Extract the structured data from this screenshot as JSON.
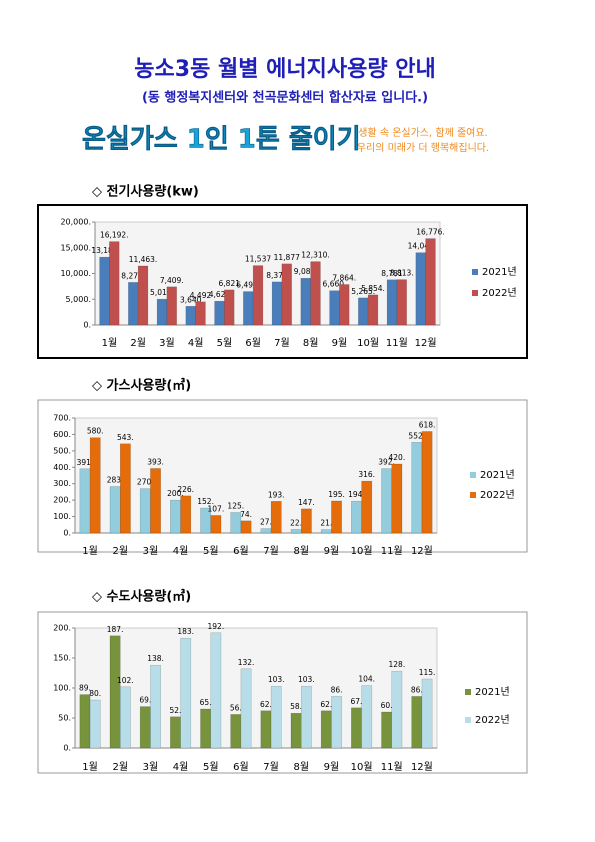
{
  "header": {
    "title": "농소3동 월별 에너지사용량 안내",
    "subtitle": "(동 행정복지센터와 천곡문화센터 합산자료 입니다.)"
  },
  "banner": {
    "slogan": "온실가스 1인 1톤 줄이기",
    "tagline": [
      "생활 속 온실가스, 함께 줄여요.",
      "우리의 미래가 더 행복해집니다."
    ]
  },
  "chart_data": [
    {
      "type": "bar",
      "title": "◇ 전기사용량(kw)",
      "categories": [
        "1월",
        "2월",
        "3월",
        "4월",
        "5월",
        "6월",
        "7월",
        "8월",
        "9월",
        "10월",
        "11월",
        "12월"
      ],
      "series": [
        {
          "name": "2021년",
          "color": "#4a7ebb",
          "values": [
            13180,
            8279,
            5017,
            3640,
            4627,
            6494,
            8374,
            9080,
            6660,
            5265,
            8781,
            14044
          ],
          "value_labels": [
            "13,180",
            "8,279.",
            "5,017.",
            "3,640",
            "4,627",
            "6,494.",
            "8,374",
            "9,080.",
            "6,660.",
            "5,265.",
            "8,781",
            "14,044"
          ]
        },
        {
          "name": "2022년",
          "color": "#c0504d",
          "values": [
            16192,
            11463,
            7409,
            4492,
            6821,
            11537,
            11877,
            12310,
            7864,
            5854,
            8813,
            16776
          ],
          "value_labels": [
            "16,192.",
            "11,463.",
            "7,409.",
            "4,492",
            "6,821",
            "11,537",
            "11,877",
            "12,310.",
            "7,864.",
            "5,854.",
            "8,813.",
            "16,776."
          ]
        }
      ],
      "ylim": [
        0,
        20000
      ],
      "yticks": [
        {
          "value": 0,
          "label": "0."
        },
        {
          "value": 5000,
          "label": "5,000."
        },
        {
          "value": 10000,
          "label": "10,000."
        },
        {
          "value": 15000,
          "label": "15,000."
        },
        {
          "value": 20000,
          "label": "20,000."
        }
      ]
    },
    {
      "type": "bar",
      "title": "◇ 가스사용량(㎥)",
      "categories": [
        "1월",
        "2월",
        "3월",
        "4월",
        "5월",
        "6월",
        "7월",
        "8월",
        "9월",
        "10월",
        "11월",
        "12월"
      ],
      "series": [
        {
          "name": "2021년",
          "color": "#93cddd",
          "values": [
            391,
            283,
            270,
            200,
            152,
            125,
            27,
            22,
            21,
            194,
            392,
            552
          ],
          "value_labels": [
            "391.",
            "283.",
            "270.",
            "200.",
            "152.",
            "125.",
            "27.",
            "22.",
            "21.",
            "194.",
            "392.",
            "552."
          ]
        },
        {
          "name": "2022년",
          "color": "#e46c0a",
          "values": [
            580,
            543,
            393,
            226,
            107,
            74,
            193,
            147,
            195,
            316,
            420,
            618
          ],
          "value_labels": [
            "580.",
            "543.",
            "393.",
            "226.",
            "107.",
            "74.",
            "193.",
            "147.",
            "195.",
            "316.",
            "420.",
            "618."
          ]
        }
      ],
      "ylim": [
        0,
        700
      ],
      "yticks": [
        {
          "value": 0,
          "label": "0."
        },
        {
          "value": 100,
          "label": "100."
        },
        {
          "value": 200,
          "label": "200."
        },
        {
          "value": 300,
          "label": "300."
        },
        {
          "value": 400,
          "label": "400."
        },
        {
          "value": 500,
          "label": "500."
        },
        {
          "value": 600,
          "label": "600."
        },
        {
          "value": 700,
          "label": "700."
        }
      ]
    },
    {
      "type": "bar",
      "title": "◇ 수도사용량(㎥)",
      "categories": [
        "1월",
        "2월",
        "3월",
        "4월",
        "5월",
        "6월",
        "7월",
        "8월",
        "9월",
        "10월",
        "11월",
        "12월"
      ],
      "series": [
        {
          "name": "2021년",
          "color": "#77933c",
          "values": [
            89,
            187,
            69,
            52,
            65,
            56,
            62,
            58,
            62,
            67,
            60,
            86
          ],
          "value_labels": [
            "89.",
            "187.",
            "69.",
            "52.",
            "65.",
            "56.",
            "62.",
            "58.",
            "62.",
            "67.",
            "60.",
            "86."
          ]
        },
        {
          "name": "2022년",
          "color": "#b7dee8",
          "values": [
            80,
            102,
            138,
            183,
            192,
            132,
            103,
            103,
            86,
            104,
            128,
            115
          ],
          "value_labels": [
            "80.",
            "102.",
            "138.",
            "183.",
            "192.",
            "132.",
            "103.",
            "103.",
            "86.",
            "104.",
            "128.",
            "115."
          ]
        }
      ],
      "ylim": [
        0,
        200
      ],
      "yticks": [
        {
          "value": 0,
          "label": "0."
        },
        {
          "value": 50,
          "label": "50."
        },
        {
          "value": 100,
          "label": "100."
        },
        {
          "value": 150,
          "label": "150."
        },
        {
          "value": 200,
          "label": "200."
        }
      ]
    }
  ]
}
